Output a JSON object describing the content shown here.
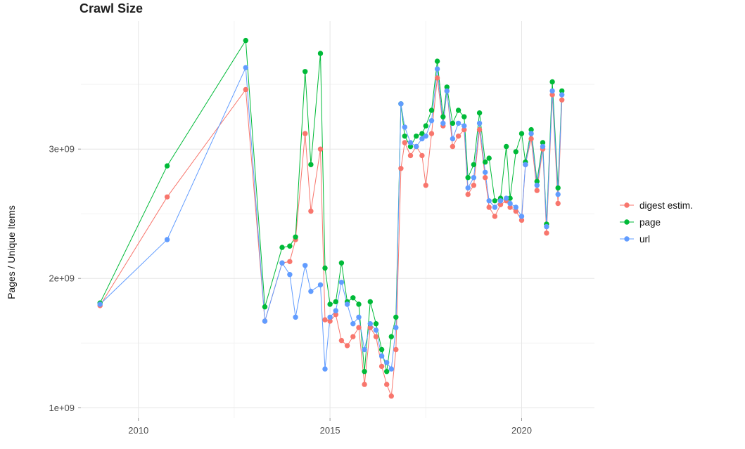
{
  "chart_data": {
    "type": "line",
    "title": "Crawl Size",
    "xlabel": "",
    "ylabel": "Pages / Unique Items",
    "legend_position": "right",
    "grid": true,
    "xlim": [
      2008.5,
      2021.9
    ],
    "ylim": [
      920000000.0,
      3990000000.0
    ],
    "xticks": [
      2010,
      2015,
      2020
    ],
    "xtick_labels": [
      "2010",
      "2015",
      "2020"
    ],
    "yticks": [
      1000000000.0,
      2000000000.0,
      3000000000.0
    ],
    "ytick_labels": [
      "1e+09",
      "2e+09",
      "3e+09"
    ],
    "x": [
      2009.0,
      2010.75,
      2012.8,
      2013.3,
      2013.75,
      2013.95,
      2014.1,
      2014.35,
      2014.5,
      2014.75,
      2014.87,
      2015.0,
      2015.15,
      2015.3,
      2015.45,
      2015.6,
      2015.75,
      2015.9,
      2016.05,
      2016.2,
      2016.35,
      2016.48,
      2016.6,
      2016.72,
      2016.85,
      2016.95,
      2017.1,
      2017.25,
      2017.4,
      2017.5,
      2017.65,
      2017.8,
      2017.95,
      2018.05,
      2018.2,
      2018.35,
      2018.5,
      2018.6,
      2018.75,
      2018.9,
      2019.05,
      2019.15,
      2019.3,
      2019.45,
      2019.6,
      2019.7,
      2019.85,
      2020.0,
      2020.1,
      2020.25,
      2020.4,
      2020.55,
      2020.65,
      2020.8,
      2020.95,
      2021.05
    ],
    "series": [
      {
        "name": "digest estim.",
        "color": "#F8766D",
        "values": [
          1790000000.0,
          2630000000.0,
          3460000000.0,
          1670000000.0,
          2120000000.0,
          2130000000.0,
          2300000000.0,
          3120000000.0,
          2520000000.0,
          3000000000.0,
          1680000000.0,
          1670000000.0,
          1720000000.0,
          1520000000.0,
          1480000000.0,
          1550000000.0,
          1620000000.0,
          1180000000.0,
          1620000000.0,
          1550000000.0,
          1320000000.0,
          1180000000.0,
          1090000000.0,
          1450000000.0,
          2850000000.0,
          3050000000.0,
          2950000000.0,
          3020000000.0,
          2950000000.0,
          2720000000.0,
          3120000000.0,
          3550000000.0,
          3180000000.0,
          3450000000.0,
          3020000000.0,
          3100000000.0,
          3150000000.0,
          2650000000.0,
          2720000000.0,
          3150000000.0,
          2780000000.0,
          2550000000.0,
          2480000000.0,
          2570000000.0,
          2600000000.0,
          2550000000.0,
          2520000000.0,
          2450000000.0,
          2880000000.0,
          3080000000.0,
          2680000000.0,
          3000000000.0,
          2350000000.0,
          3420000000.0,
          2580000000.0,
          3380000000.0
        ]
      },
      {
        "name": "page",
        "color": "#00BA38",
        "values": [
          1810000000.0,
          2870000000.0,
          3840000000.0,
          1780000000.0,
          2240000000.0,
          2250000000.0,
          2320000000.0,
          3600000000.0,
          2880000000.0,
          3740000000.0,
          2080000000.0,
          1800000000.0,
          1820000000.0,
          2120000000.0,
          1820000000.0,
          1850000000.0,
          1800000000.0,
          1280000000.0,
          1820000000.0,
          1650000000.0,
          1450000000.0,
          1280000000.0,
          1550000000.0,
          1700000000.0,
          3350000000.0,
          3100000000.0,
          3020000000.0,
          3100000000.0,
          3120000000.0,
          3180000000.0,
          3300000000.0,
          3680000000.0,
          3250000000.0,
          3480000000.0,
          3200000000.0,
          3300000000.0,
          3250000000.0,
          2780000000.0,
          2880000000.0,
          3280000000.0,
          2900000000.0,
          2930000000.0,
          2600000000.0,
          2620000000.0,
          3020000000.0,
          2620000000.0,
          2980000000.0,
          3120000000.0,
          2900000000.0,
          3150000000.0,
          2750000000.0,
          3050000000.0,
          2420000000.0,
          3520000000.0,
          2700000000.0,
          3450000000.0
        ]
      },
      {
        "name": "url",
        "color": "#619CFF",
        "values": [
          1800000000.0,
          2300000000.0,
          3630000000.0,
          1670000000.0,
          2120000000.0,
          2030000000.0,
          1700000000.0,
          2100000000.0,
          1900000000.0,
          1950000000.0,
          1300000000.0,
          1700000000.0,
          1750000000.0,
          1970000000.0,
          1800000000.0,
          1650000000.0,
          1700000000.0,
          1450000000.0,
          1650000000.0,
          1600000000.0,
          1400000000.0,
          1350000000.0,
          1300000000.0,
          1620000000.0,
          3350000000.0,
          3170000000.0,
          3050000000.0,
          3020000000.0,
          3080000000.0,
          3100000000.0,
          3220000000.0,
          3620000000.0,
          3200000000.0,
          3450000000.0,
          3080000000.0,
          3200000000.0,
          3180000000.0,
          2700000000.0,
          2780000000.0,
          3200000000.0,
          2820000000.0,
          2600000000.0,
          2550000000.0,
          2600000000.0,
          2620000000.0,
          2580000000.0,
          2550000000.0,
          2480000000.0,
          2880000000.0,
          3120000000.0,
          2720000000.0,
          3020000000.0,
          2400000000.0,
          3450000000.0,
          2650000000.0,
          3420000000.0
        ]
      }
    ]
  }
}
